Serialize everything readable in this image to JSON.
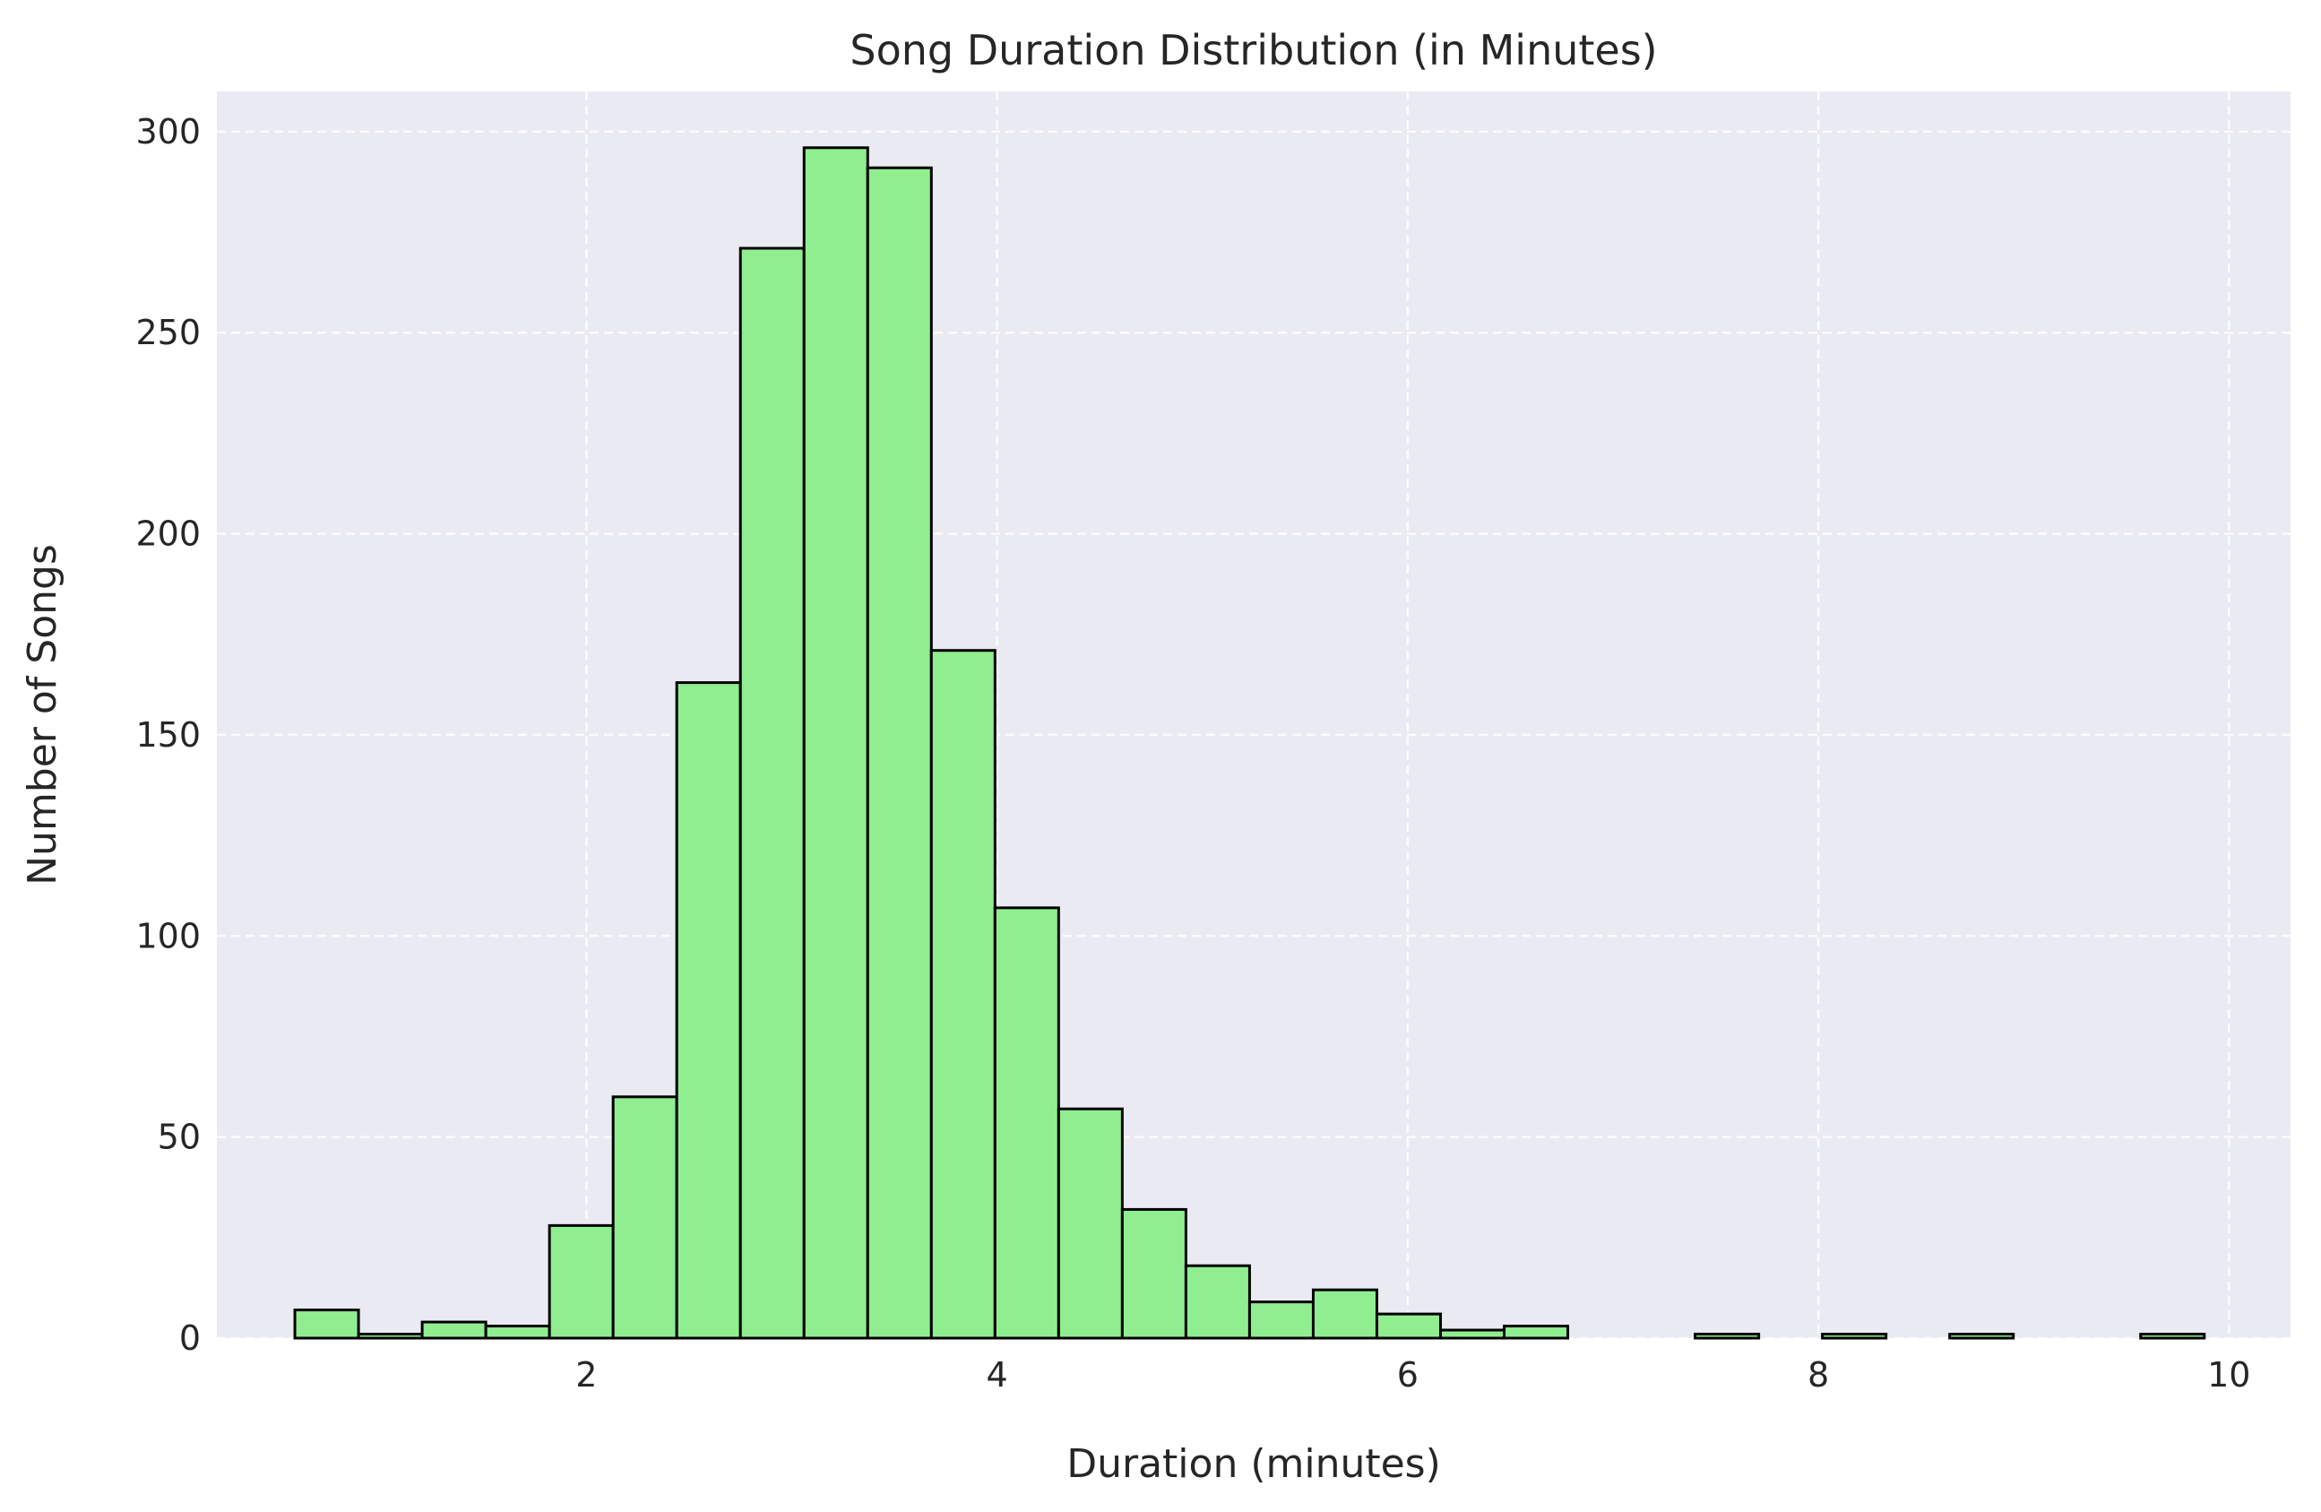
{
  "chart_data": {
    "type": "bar",
    "title": "Song Duration Distribution (in Minutes)",
    "xlabel": "Duration (minutes)",
    "ylabel": "Number of Songs",
    "xlim": [
      0.2,
      10.3
    ],
    "ylim": [
      0,
      310
    ],
    "x_ticks": [
      2,
      4,
      6,
      8,
      10
    ],
    "y_ticks": [
      0,
      50,
      100,
      150,
      200,
      250,
      300
    ],
    "grid": true,
    "bins": [
      {
        "x0": 0.58,
        "x1": 0.89,
        "count": 7
      },
      {
        "x0": 0.89,
        "x1": 1.2,
        "count": 1
      },
      {
        "x0": 1.2,
        "x1": 1.51,
        "count": 4
      },
      {
        "x0": 1.51,
        "x1": 1.82,
        "count": 3
      },
      {
        "x0": 1.82,
        "x1": 2.13,
        "count": 28
      },
      {
        "x0": 2.13,
        "x1": 2.44,
        "count": 60
      },
      {
        "x0": 2.44,
        "x1": 2.75,
        "count": 163
      },
      {
        "x0": 2.75,
        "x1": 3.06,
        "count": 271
      },
      {
        "x0": 3.06,
        "x1": 3.37,
        "count": 296
      },
      {
        "x0": 3.37,
        "x1": 3.68,
        "count": 291
      },
      {
        "x0": 3.68,
        "x1": 3.99,
        "count": 171
      },
      {
        "x0": 3.99,
        "x1": 4.3,
        "count": 107
      },
      {
        "x0": 4.3,
        "x1": 4.61,
        "count": 57
      },
      {
        "x0": 4.61,
        "x1": 4.92,
        "count": 32
      },
      {
        "x0": 4.92,
        "x1": 5.23,
        "count": 18
      },
      {
        "x0": 5.23,
        "x1": 5.54,
        "count": 9
      },
      {
        "x0": 5.54,
        "x1": 5.85,
        "count": 12
      },
      {
        "x0": 5.85,
        "x1": 6.16,
        "count": 6
      },
      {
        "x0": 6.16,
        "x1": 6.47,
        "count": 2
      },
      {
        "x0": 6.47,
        "x1": 6.78,
        "count": 3
      },
      {
        "x0": 6.78,
        "x1": 7.09,
        "count": 0
      },
      {
        "x0": 7.09,
        "x1": 7.4,
        "count": 0
      },
      {
        "x0": 7.4,
        "x1": 7.71,
        "count": 1
      },
      {
        "x0": 7.71,
        "x1": 8.02,
        "count": 0
      },
      {
        "x0": 8.02,
        "x1": 8.33,
        "count": 1
      },
      {
        "x0": 8.33,
        "x1": 8.64,
        "count": 0
      },
      {
        "x0": 8.64,
        "x1": 8.95,
        "count": 1
      },
      {
        "x0": 8.95,
        "x1": 9.26,
        "count": 0
      },
      {
        "x0": 9.26,
        "x1": 9.57,
        "count": 0
      },
      {
        "x0": 9.57,
        "x1": 9.88,
        "count": 1
      }
    ],
    "colors": {
      "bar_fill": "#90ee90",
      "bar_edge": "#000000",
      "plot_background": "#eaeaf2",
      "grid": "#ffffff"
    }
  }
}
